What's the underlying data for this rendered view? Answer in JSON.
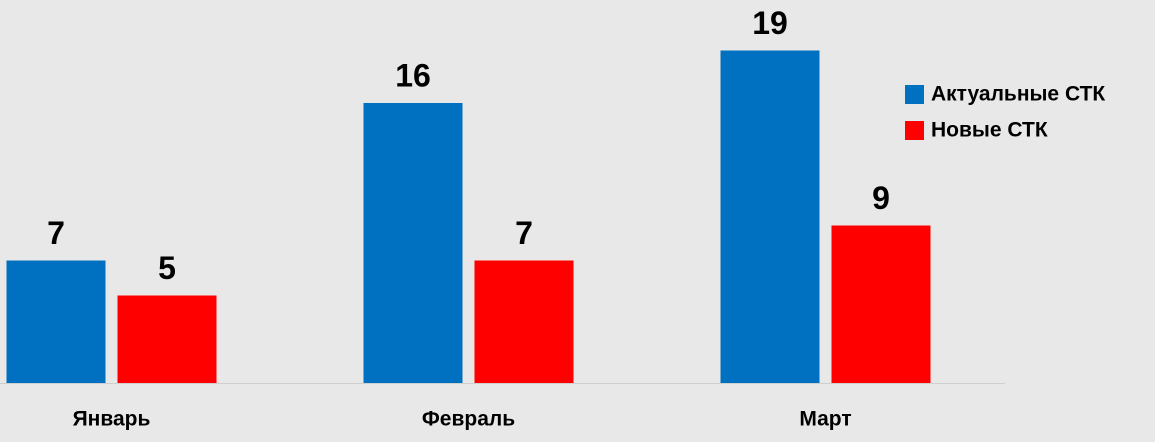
{
  "chart_data": {
    "type": "bar",
    "categories": [
      "Январь",
      "Февраль",
      "Март"
    ],
    "series": [
      {
        "name": "Актуальные СТК",
        "color": "#0070c0",
        "values": [
          7,
          16,
          19
        ]
      },
      {
        "name": "Новые СТК",
        "color": "#ff0000",
        "values": [
          5,
          7,
          9
        ]
      }
    ],
    "legend": "right"
  }
}
